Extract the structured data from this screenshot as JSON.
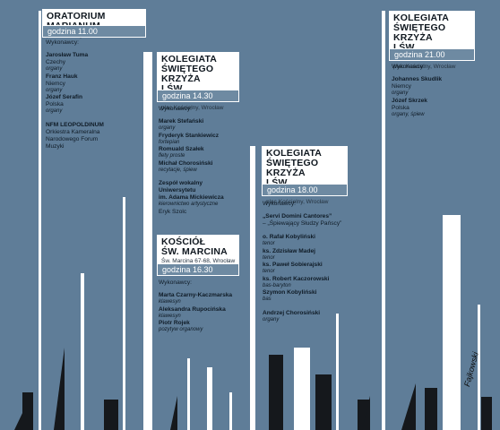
{
  "concerts": [
    {
      "venue": "Oratorium Marianum",
      "address": "plac Uniwersytecki 1, Wrocław",
      "time": "godzina 11.00",
      "performers_label": "Wykonawcy:",
      "performers": [
        {
          "name": "Jarosław Tuma",
          "role": "Czechy"
        },
        {
          "name": "",
          "role": "organy"
        },
        {
          "name": "Franz Hauk",
          "role": "Niemcy"
        },
        {
          "name": "",
          "role": "organy"
        },
        {
          "name": "Józef Serafin",
          "role": "Polska"
        },
        {
          "name": "",
          "role": "organy"
        },
        {
          "name": "",
          "role": ""
        },
        {
          "name": "NFM LEOPOLDINUM",
          "role": ""
        },
        {
          "name": "Orkiestra Kameralna",
          "role": ""
        },
        {
          "name": "Narodowego Forum",
          "role": ""
        },
        {
          "name": "Muzyki",
          "role": ""
        }
      ]
    },
    {
      "venue": "Kolegiata\nŚwiętego Krzyża\ni św. Bartłomieja",
      "address": "plac Kościelny, Wrocław",
      "time": "godzina 14.30",
      "performers_label": "Wykonawcy:",
      "performers": [
        {
          "name": "Marek Stefański",
          "role": "organy"
        },
        {
          "name": "Fryderyk Stankiewicz",
          "role": "fortepian"
        },
        {
          "name": "Romuald Szałek",
          "role": "flety proste"
        },
        {
          "name": "Michał Chorosiński",
          "role": "recytacje, śpiew"
        },
        {
          "name": "",
          "role": ""
        },
        {
          "name": "Zespół wokalny",
          "role": ""
        },
        {
          "name": "Uniwersytetu",
          "role": ""
        },
        {
          "name": "im. Adama Mickiewicza",
          "role": "kierownictwo artystyczne"
        },
        {
          "name": "",
          "role": "Eryk Szolc"
        }
      ]
    },
    {
      "venue": "Kościół\nśw. Marcina",
      "address": "Św. Marcina 67-68, Wrocław",
      "time": "godzina 16.30",
      "performers_label": "Wykonawcy:",
      "performers": [
        {
          "name": "Marta Czarny-Kaczmarska",
          "role": "klawesyn"
        },
        {
          "name": "Aleksandra Rupocińska",
          "role": "klawesyn"
        },
        {
          "name": "Piotr Rojek",
          "role": "pozytyw organowy"
        }
      ]
    },
    {
      "venue": "Kolegiata\nŚwiętego Krzyża\ni św. Bartłomieja",
      "address": "plac Kościelny, Wrocław",
      "time": "godzina 18.00",
      "performers_label": "Wykonawcy:",
      "performers": [
        {
          "name": "„Servi Domini Cantores”",
          "role": ""
        },
        {
          "name": "",
          "role": "– „Śpiewający Słudzy Pańscy”"
        },
        {
          "name": "",
          "role": ""
        },
        {
          "name": "o. Rafał Kobyliński",
          "role": "tenor"
        },
        {
          "name": "ks. Zdzisław Madej",
          "role": "tenor"
        },
        {
          "name": "ks. Paweł Sobierajski",
          "role": "tenor"
        },
        {
          "name": "ks. Robert Kaczorowski",
          "role": "bas-baryton"
        },
        {
          "name": "Szymon Kobyliński",
          "role": "bas"
        },
        {
          "name": "",
          "role": ""
        },
        {
          "name": "Andrzej Chorosiński",
          "role": "organy"
        }
      ]
    },
    {
      "venue": "Kolegiata\nŚwiętego Krzyża\ni św. Bartłomieja",
      "address": "plac Kościelny, Wrocław",
      "time": "godzina 21.00",
      "performers_label": "Wykonawcy:",
      "performers": [
        {
          "name": "Johannes Skudlik",
          "role": "Niemcy"
        },
        {
          "name": "",
          "role": "organy"
        },
        {
          "name": "Józef Skrzek",
          "role": "Polska"
        },
        {
          "name": "",
          "role": "organy, śpiew"
        }
      ]
    }
  ],
  "signature": "Fajkowski",
  "colors": {
    "background": "#5f7d98",
    "time_box": "#6e8aa2",
    "dark_bars": "#15181c"
  }
}
